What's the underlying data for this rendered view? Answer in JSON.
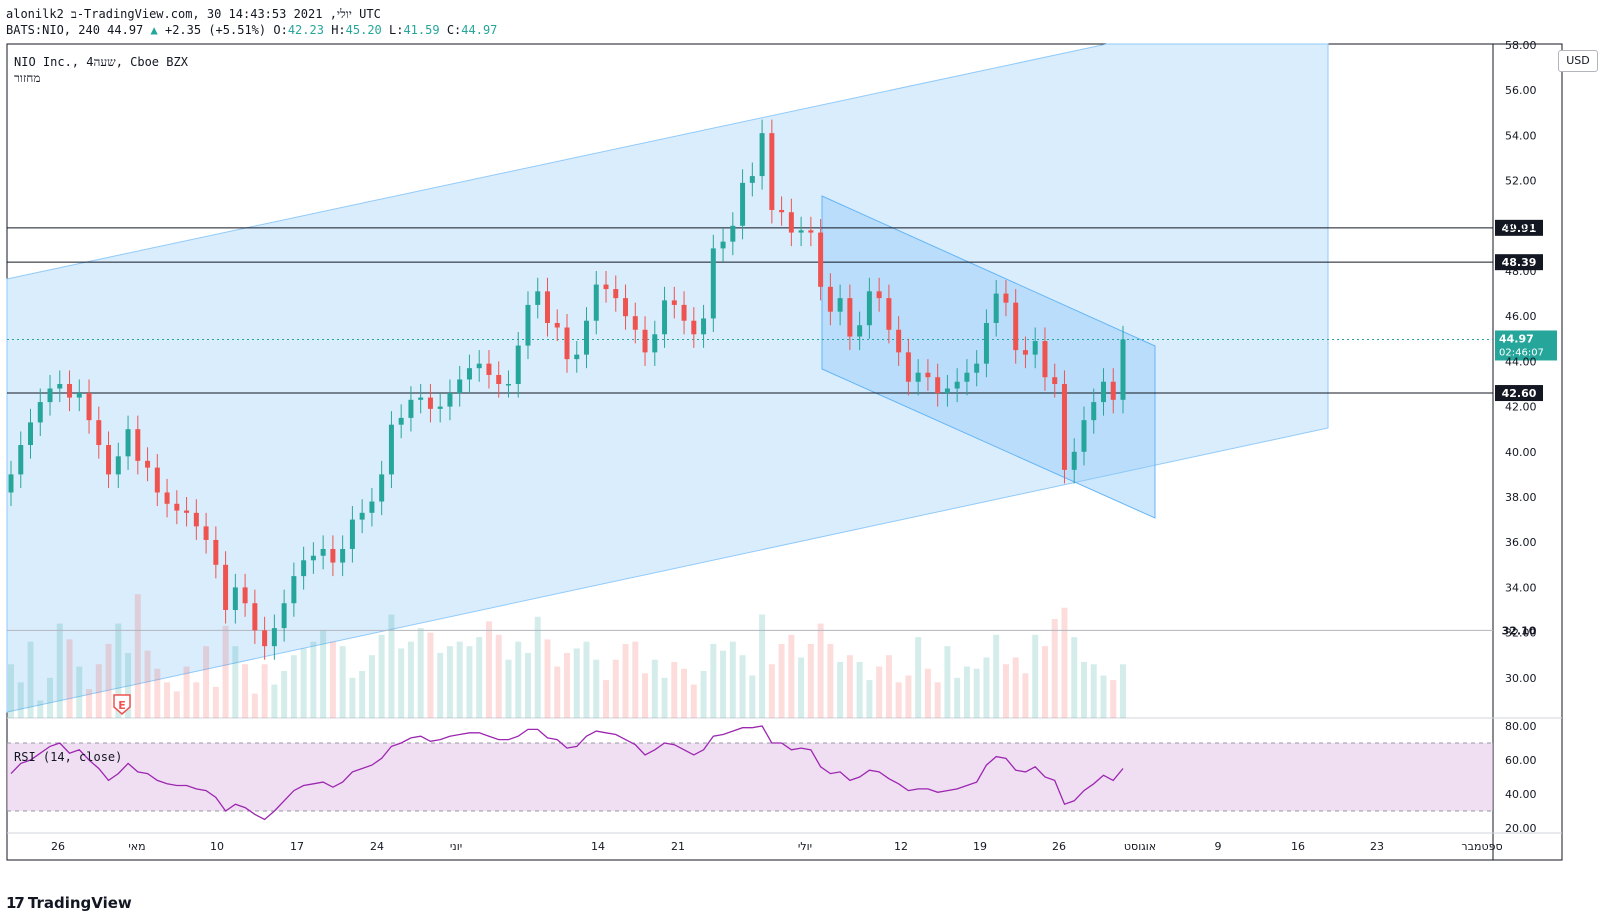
{
  "header": {
    "line1": "alonilk2 ב-TradingView.com, 30 יולי, 2021 14:43:53 UTC",
    "symbol": "BATS:NIO, 240",
    "last": "44.97",
    "change": "+2.35 (+5.51%)",
    "o_label": "O:",
    "o": "42.23",
    "h_label": "H:",
    "h": "45.20",
    "l_label": "L:",
    "l": "41.59",
    "c_label": "C:",
    "c": "44.97"
  },
  "legend": {
    "title": "NIO Inc., 4שעה, Cboe BZX",
    "volume_label": "מחזור"
  },
  "rsi_legend": "RSI (14, close)",
  "currency": "USD",
  "footer": {
    "brand": "TradingView"
  },
  "colors": {
    "up": "#26a69a",
    "down": "#ef5350",
    "channel": "#bbdefb",
    "rsi_band": "#e1bee7",
    "rsi_line": "#9c27b0"
  },
  "chart_data": [
    {
      "type": "candlestick",
      "ylim": [
        29,
        58
      ],
      "y_ticks": [
        "30.00",
        "32.00",
        "34.00",
        "36.00",
        "38.00",
        "40.00",
        "42.00",
        "44.00",
        "46.00",
        "48.00",
        "50.00",
        "52.00",
        "54.00",
        "56.00",
        "58.00"
      ],
      "x_ticks": [
        "26",
        "מאי",
        "10",
        "17",
        "24",
        "יוני",
        "14",
        "21",
        "יולי",
        "12",
        "19",
        "26",
        "אוגוסט",
        "9",
        "16",
        "23",
        "ספטמבר"
      ],
      "price_levels": [
        {
          "label": "49.91",
          "value": 49.91,
          "style": "solid"
        },
        {
          "label": "48.39",
          "value": 48.39,
          "style": "solid"
        },
        {
          "label": "42.60",
          "value": 42.6,
          "style": "solid"
        },
        {
          "label": "32.10",
          "value": 32.1,
          "style": "thin"
        }
      ],
      "last_price": {
        "label": "44.97",
        "countdown": "02:46:07",
        "value": 44.97
      },
      "earnings_marker": "E",
      "closes": [
        39.0,
        40.3,
        41.3,
        42.2,
        42.8,
        43.0,
        42.4,
        42.6,
        41.4,
        40.3,
        39.0,
        39.8,
        41.0,
        39.6,
        39.3,
        38.2,
        37.7,
        37.4,
        37.3,
        36.7,
        36.1,
        35.0,
        33.0,
        34.0,
        33.3,
        32.1,
        31.4,
        32.2,
        33.3,
        34.5,
        35.2,
        35.4,
        35.7,
        35.1,
        35.7,
        37.0,
        37.3,
        37.8,
        39.0,
        41.2,
        41.5,
        42.3,
        42.4,
        41.9,
        42.0,
        42.6,
        43.2,
        43.7,
        43.9,
        43.4,
        43.0,
        43.0,
        44.7,
        46.5,
        47.1,
        45.7,
        45.5,
        44.1,
        44.3,
        45.8,
        47.4,
        47.2,
        46.8,
        46.0,
        45.4,
        44.4,
        45.2,
        46.7,
        46.5,
        45.8,
        45.2,
        45.9,
        49.0,
        49.3,
        50.0,
        51.9,
        52.2,
        54.1,
        50.7,
        50.6,
        49.7,
        49.8,
        49.7,
        47.3,
        46.2,
        46.8,
        45.1,
        45.6,
        47.1,
        46.8,
        45.4,
        44.4,
        43.1,
        43.5,
        43.3,
        42.6,
        42.8,
        43.1,
        43.5,
        43.9,
        45.7,
        47.0,
        46.6,
        44.5,
        44.3,
        44.9,
        43.3,
        43.0,
        39.2,
        40.0,
        41.4,
        42.2,
        43.1,
        42.3,
        44.97
      ],
      "rsi": [
        52,
        58,
        60,
        64,
        68,
        70,
        64,
        66,
        60,
        55,
        48,
        52,
        58,
        53,
        52,
        48,
        46,
        45,
        45,
        43,
        42,
        38,
        30,
        34,
        32,
        28,
        25,
        30,
        36,
        42,
        45,
        46,
        47,
        44,
        47,
        53,
        55,
        57,
        61,
        68,
        70,
        73,
        74,
        71,
        72,
        74,
        75,
        76,
        76,
        74,
        72,
        72,
        74,
        78,
        78,
        73,
        72,
        67,
        68,
        74,
        77,
        76,
        75,
        72,
        69,
        63,
        66,
        70,
        69,
        66,
        63,
        66,
        74,
        75,
        77,
        79,
        79,
        80,
        70,
        70,
        66,
        67,
        66,
        56,
        52,
        53,
        48,
        50,
        54,
        53,
        49,
        46,
        42,
        43,
        43,
        41,
        42,
        43,
        45,
        47,
        57,
        62,
        61,
        54,
        53,
        56,
        50,
        48,
        34,
        36,
        42,
        46,
        51,
        48,
        55
      ],
      "volume": [
        30.6,
        29.8,
        31.6,
        29.0,
        30.0,
        32.4,
        31.7,
        30.5,
        29.5,
        30.6,
        31.5,
        32.4,
        31.1,
        33.7,
        31.2,
        30.4,
        29.8,
        29.4,
        30.5,
        29.8,
        31.4,
        29.6,
        32.3,
        31.4,
        30.6,
        29.3,
        30.6,
        29.7,
        30.3,
        31.0,
        31.3,
        31.6,
        32.1,
        31.6,
        31.4,
        30.0,
        30.3,
        31.0,
        31.9,
        32.8,
        31.3,
        31.6,
        32.2,
        32.0,
        31.1,
        31.4,
        31.6,
        31.4,
        31.8,
        32.5,
        31.9,
        30.8,
        31.6,
        31.1,
        32.7,
        31.7,
        30.5,
        31.1,
        31.3,
        31.6,
        30.8,
        29.9,
        30.8,
        31.5,
        31.6,
        30.2,
        30.8,
        30.0,
        30.7,
        30.4,
        29.7,
        30.3,
        31.5,
        31.2,
        31.6,
        31.0,
        30.1,
        32.8,
        30.6,
        31.5,
        31.9,
        30.9,
        31.5,
        32.4,
        31.5,
        30.7,
        31.0,
        30.7,
        29.9,
        30.5,
        31.0,
        29.8,
        30.1,
        31.8,
        30.4,
        29.8,
        31.4,
        30.0,
        30.5,
        30.4,
        30.9,
        31.9,
        30.6,
        30.9,
        30.2,
        31.9,
        31.4,
        32.6,
        33.1,
        31.8,
        30.7,
        30.6,
        30.1,
        29.9,
        30.6
      ]
    }
  ]
}
